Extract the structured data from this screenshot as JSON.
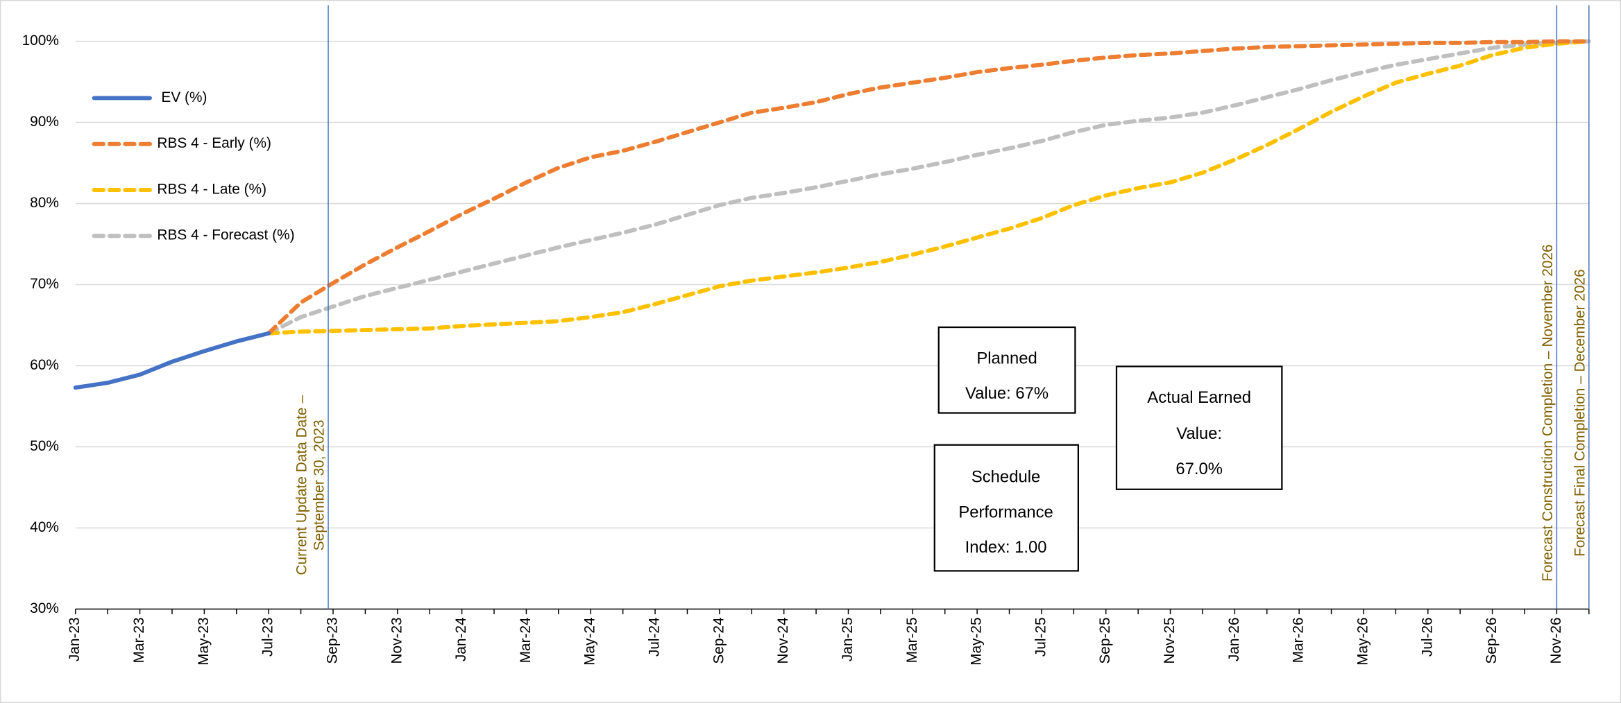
{
  "chart_data": {
    "type": "line",
    "categories": [
      "Jan-23",
      null,
      "Mar-23",
      null,
      "May-23",
      null,
      "Jul-23",
      null,
      "Sep-23",
      null,
      "Nov-23",
      null,
      "Jan-24",
      null,
      "Mar-24",
      null,
      "May-24",
      null,
      "Jul-24",
      null,
      "Sep-24",
      null,
      "Nov-24",
      null,
      "Jan-25",
      null,
      "Mar-25",
      null,
      "May-25",
      null,
      "Jul-25",
      null,
      "Sep-25",
      null,
      "Nov-25",
      null,
      "Jan-26",
      null,
      "Mar-26",
      null,
      "May-26",
      null,
      "Jul-26",
      null,
      "Sep-26",
      null,
      "Nov-26",
      null
    ],
    "series": [
      {
        "name": "EV (%)",
        "color": "#4472c4",
        "style": "solid",
        "values": [
          57.3,
          57.9,
          58.9,
          60.5,
          61.8,
          63.0,
          64.0,
          null,
          null,
          null,
          null,
          null,
          null,
          null,
          null,
          null,
          null,
          null,
          null,
          null,
          null,
          null,
          null,
          null,
          null,
          null,
          null,
          null,
          null,
          null,
          null,
          null,
          null,
          null,
          null,
          null,
          null,
          null,
          null,
          null,
          null,
          null,
          null,
          null,
          null,
          null,
          null,
          null
        ]
      },
      {
        "name": "RBS 4 - Early (%)",
        "color": "#ed7d31",
        "style": "dashed",
        "values": [
          null,
          null,
          null,
          null,
          null,
          null,
          64.0,
          67.8,
          70.2,
          72.5,
          74.6,
          76.6,
          78.7,
          80.6,
          82.6,
          84.4,
          85.7,
          86.5,
          87.6,
          88.8,
          90.0,
          91.2,
          91.8,
          92.5,
          93.5,
          94.3,
          94.9,
          95.5,
          96.2,
          96.7,
          97.1,
          97.6,
          98.0,
          98.3,
          98.5,
          98.8,
          99.1,
          99.3,
          99.4,
          99.5,
          99.6,
          99.7,
          99.8,
          99.8,
          99.9,
          99.9,
          100,
          100
        ]
      },
      {
        "name": "RBS 4 - Late (%)",
        "color": "#ffc000",
        "style": "dashed",
        "values": [
          null,
          null,
          null,
          null,
          null,
          null,
          64.0,
          64.2,
          64.3,
          64.4,
          64.5,
          64.6,
          64.9,
          65.1,
          65.3,
          65.5,
          66.0,
          66.6,
          67.6,
          68.7,
          69.8,
          70.5,
          71.0,
          71.5,
          72.1,
          72.8,
          73.7,
          74.7,
          75.8,
          76.9,
          78.2,
          79.8,
          81.0,
          81.9,
          82.6,
          83.8,
          85.4,
          87.2,
          89.2,
          91.3,
          93.2,
          94.9,
          96.0,
          97.0,
          98.3,
          99.2,
          99.7,
          100
        ]
      },
      {
        "name": "RBS 4 - Forecast (%)",
        "color": "#bfbfbf",
        "style": "dashed",
        "values": [
          null,
          null,
          null,
          null,
          null,
          null,
          64.0,
          66.0,
          67.3,
          68.6,
          69.6,
          70.6,
          71.6,
          72.6,
          73.6,
          74.6,
          75.5,
          76.4,
          77.4,
          78.6,
          79.8,
          80.7,
          81.3,
          82.0,
          82.8,
          83.6,
          84.3,
          85.1,
          86.0,
          86.8,
          87.7,
          88.8,
          89.7,
          90.2,
          90.6,
          91.2,
          92.1,
          93.1,
          94.1,
          95.2,
          96.2,
          97.1,
          97.8,
          98.5,
          99.2,
          99.6,
          99.8,
          100
        ]
      }
    ],
    "ylim": [
      30,
      100
    ],
    "yticks": [
      {
        "value": 30,
        "label": "30%"
      },
      {
        "value": 40,
        "label": "40%"
      },
      {
        "value": 50,
        "label": "50%"
      },
      {
        "value": 60,
        "label": "60%"
      },
      {
        "value": 70,
        "label": "70%"
      },
      {
        "value": 80,
        "label": "80%"
      },
      {
        "value": 90,
        "label": "90%"
      },
      {
        "value": 100,
        "label": "100%"
      }
    ],
    "grid": true,
    "legend": "upper left",
    "markers": [
      {
        "lines": [
          "Current Update Data Date –",
          "September 30, 2023"
        ]
      },
      {
        "lines": [
          "Forecast Construction Completion – November 2026"
        ]
      },
      {
        "lines": [
          "Forecast Final Completion – December 2026"
        ]
      }
    ],
    "boxes": [
      {
        "lines": [
          "Planned",
          "Value: 67%"
        ]
      },
      {
        "lines": [
          "Actual Earned",
          "Value:",
          "67.0%"
        ]
      },
      {
        "lines": [
          "Schedule",
          "Performance",
          "Index: 1.00"
        ]
      }
    ]
  }
}
